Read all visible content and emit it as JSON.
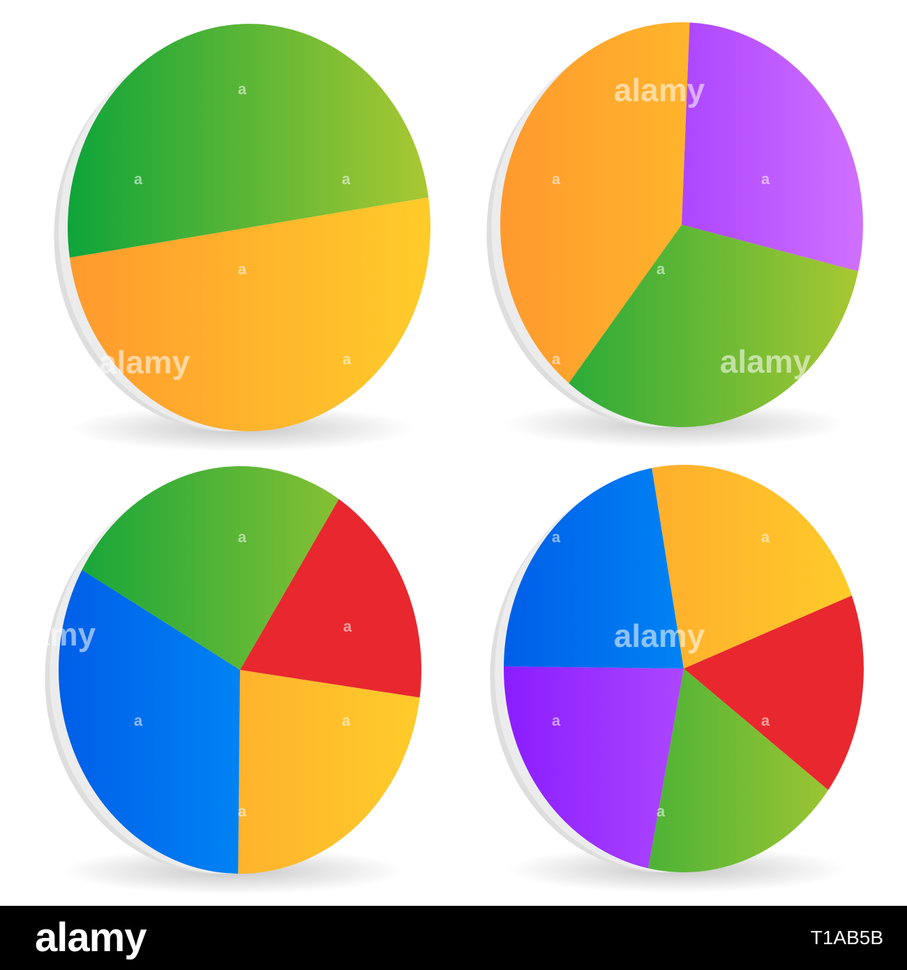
{
  "chart_data": [
    {
      "type": "pie",
      "title": "",
      "values": [
        50,
        50
      ],
      "colors": [
        [
          "#ff9a2e",
          "#ffcc2a"
        ],
        [
          "#0ea43a",
          "#aac832"
        ]
      ],
      "start_angle_deg": -8.5,
      "shadow": true
    },
    {
      "type": "pie",
      "title": "",
      "values": [
        28,
        32,
        40
      ],
      "colors": [
        [
          "#8a1cff",
          "#d070ff"
        ],
        [
          "#0ea43a",
          "#aac832"
        ],
        [
          "#ff9a2e",
          "#ffcc2a"
        ]
      ],
      "start_angle_deg": -87.5,
      "shadow": true
    },
    {
      "type": "pie",
      "title": "",
      "values": [
        18,
        23,
        33,
        26
      ],
      "colors": [
        [
          "#e8282e",
          "#e8282e"
        ],
        [
          "#ff9a2e",
          "#ffcc2a"
        ],
        [
          "#005ee8",
          "#00a8ff"
        ],
        [
          "#0ea43a",
          "#aac832"
        ]
      ],
      "start_angle_deg": -57,
      "shadow": true
    },
    {
      "type": "pie",
      "title": "",
      "values": [
        16,
        18,
        22,
        22,
        22
      ],
      "colors": [
        [
          "#e8282e",
          "#e8282e"
        ],
        [
          "#0ea43a",
          "#aac832"
        ],
        [
          "#8a1cff",
          "#d070ff"
        ],
        [
          "#005ee8",
          "#00a8ff"
        ],
        [
          "#ff9a2e",
          "#ffcc2a"
        ]
      ],
      "start_angle_deg": -21,
      "shadow": true
    }
  ],
  "watermark": {
    "text": "alamy",
    "small": "a"
  },
  "footer": {
    "logo": "alamy",
    "image_id": "T1AB5B"
  }
}
